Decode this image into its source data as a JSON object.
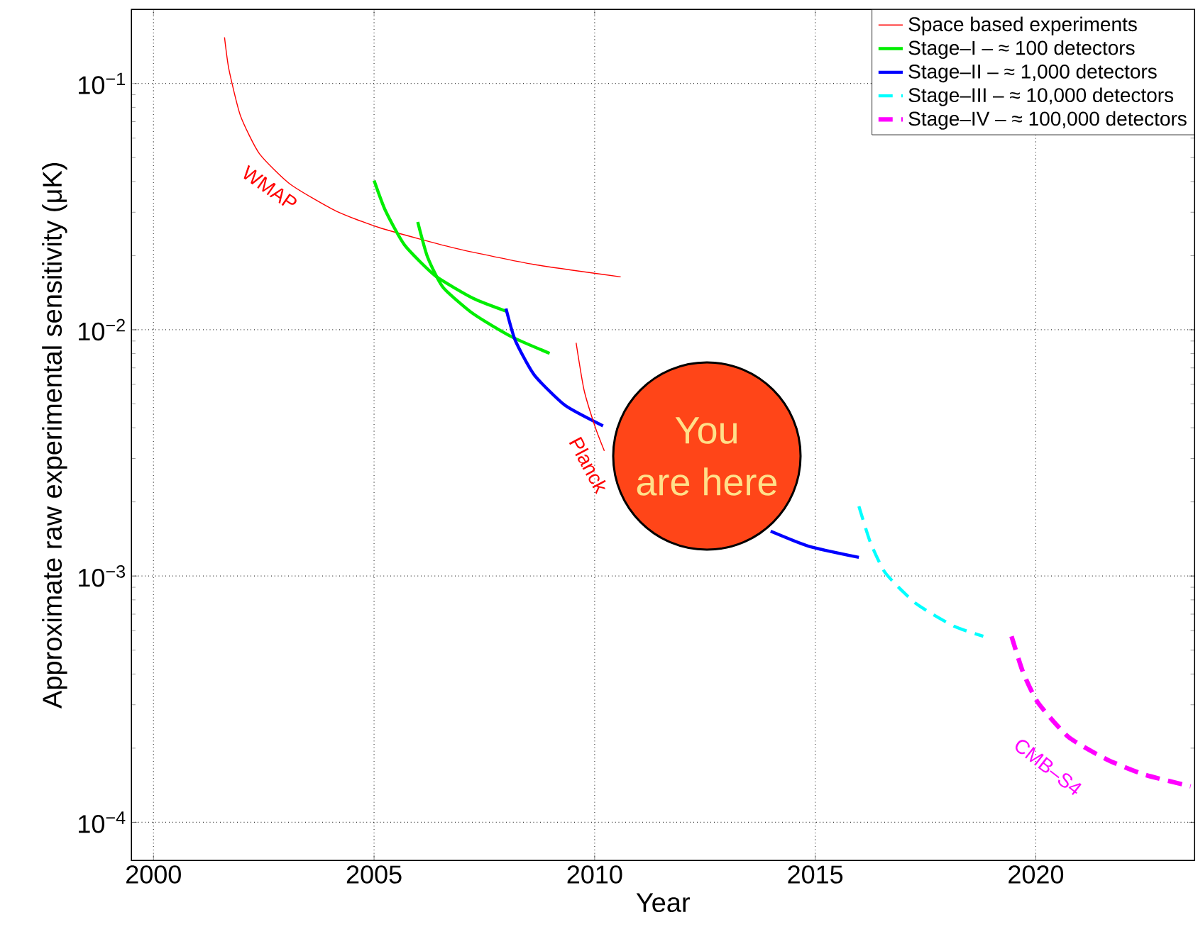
{
  "chart_data": {
    "type": "line",
    "xlabel": "Year",
    "ylabel": "Approximate raw experimental sensitivity (μK)",
    "xlim": [
      1999.5,
      2023.6
    ],
    "ylim": [
      7e-05,
      0.2
    ],
    "log": "y",
    "grid": true,
    "legend": "top right",
    "xticks": [
      2000,
      2005,
      2010,
      2015,
      2020
    ],
    "yticks": [
      {
        "value": 0.0001,
        "label": "10$^{−4}$"
      },
      {
        "value": 0.001,
        "label": "10$^{−3}$"
      },
      {
        "value": 0.01,
        "label": "10$^{−2}$"
      },
      {
        "value": 0.1,
        "label": "10$^{−1}$"
      }
    ],
    "series": [
      {
        "name": "Space based experiments",
        "color": "#ff0000",
        "line_style": "solid",
        "x": [
          2001.61,
          2001.71,
          2001.97,
          2002.4,
          2003.1,
          2004.13,
          2005.17,
          2006.9,
          2008.63,
          2010.59
        ],
        "values": [
          0.154,
          0.114,
          0.0741,
          0.0519,
          0.039,
          0.0304,
          0.0258,
          0.0213,
          0.0184,
          0.0164
        ]
      },
      {
        "name": "Stage–I – ≈ 100 detectors",
        "color": "#00ee00",
        "line_style": "solid",
        "x": [
          2005.0,
          2005.26,
          2005.69,
          2006.38,
          2007.25,
          2007.99
        ],
        "values": [
          0.0404,
          0.0304,
          0.0221,
          0.0166,
          0.0134,
          0.0119
        ]
      },
      {
        "color": "#00ee00",
        "line_style": "solid",
        "x": [
          2005.99,
          2006.21,
          2006.56,
          2007.25,
          2008.11,
          2008.98
        ],
        "values": [
          0.0274,
          0.0198,
          0.0149,
          0.0116,
          0.00938,
          0.00802
        ]
      },
      {
        "name": "Stage–II – ≈ 1,000 detectors",
        "color": "#0000ff",
        "line_style": "solid",
        "x": [
          2007.99,
          2008.2,
          2008.63,
          2009.33,
          2010.19,
          2012.0,
          2013.99,
          2014.86,
          2015.99
        ],
        "values": [
          0.0122,
          0.00906,
          0.00656,
          0.00493,
          0.00407,
          null,
          0.00152,
          0.00132,
          0.00119
        ]
      },
      {
        "name": "Stage–III – ≈ 10,000 detectors",
        "color": "#00ffff",
        "line_style": "dashed",
        "x": [
          2015.99,
          2016.25,
          2016.59,
          2017.28,
          2018.15,
          2018.81
        ],
        "values": [
          0.00192,
          0.00137,
          0.00103,
          0.000774,
          0.000625,
          0.000569
        ]
      },
      {
        "name": "Stage–IV – ≈ 100,000 detectors",
        "color": "#ff00ff",
        "line_style": "dashed",
        "x": [
          2019.45,
          2019.71,
          2020.05,
          2020.74,
          2021.61,
          2022.47,
          2023.51
        ],
        "values": [
          0.000569,
          0.000407,
          0.000306,
          0.000222,
          0.00018,
          0.000156,
          0.00014
        ]
      },
      {
        "color": "#ff0000",
        "line_style": "solid",
        "x": [
          2009.58,
          2009.76,
          2010.02,
          2010.22
        ],
        "values": [
          0.00885,
          0.00569,
          0.00399,
          0.00322
        ]
      }
    ],
    "annotations": [
      "WMAP",
      "Planck",
      "CMB–S4",
      "You",
      "are here"
    ]
  }
}
